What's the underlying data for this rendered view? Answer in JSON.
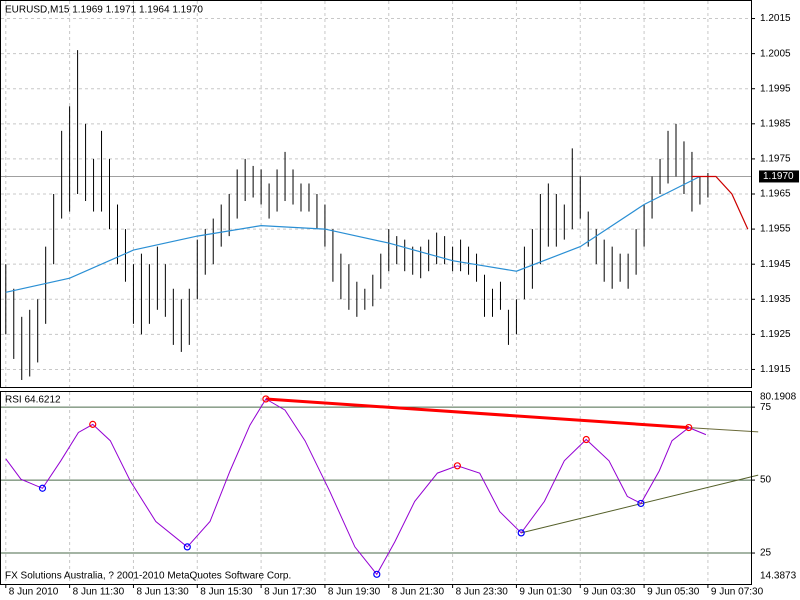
{
  "chart_data": [
    {
      "type": "ohlc",
      "title": "EURUSD,M15  1.1969 1.1971 1.1964 1.1970",
      "xlim": [
        -0.6,
        93.4
      ],
      "ylim": [
        1.191,
        1.202
      ],
      "yticks": [
        1.1915,
        1.1925,
        1.1935,
        1.1945,
        1.1955,
        1.1965,
        1.1975,
        1.1985,
        1.1995,
        1.2005,
        1.2015
      ],
      "grid": true,
      "color": "#000000",
      "high": [
        1.1945,
        1.1938,
        1.193,
        1.1932,
        1.1935,
        1.195,
        1.1965,
        1.1983,
        1.199,
        1.2006,
        1.1985,
        1.1975,
        1.1983,
        1.1975,
        1.1962,
        1.1955,
        1.1945,
        1.1948,
        1.1945,
        1.195,
        1.1945,
        1.1938,
        1.1935,
        1.1938,
        1.1952,
        1.1955,
        1.1958,
        1.1962,
        1.1965,
        1.1972,
        1.1975,
        1.1973,
        1.1972,
        1.1968,
        1.1972,
        1.1977,
        1.1972,
        1.1968,
        1.1968,
        1.1965,
        1.1962,
        1.1955,
        1.1948,
        1.1945,
        1.194,
        1.1938,
        1.1942,
        1.1948,
        1.1955,
        1.1953,
        1.1952,
        1.195,
        1.195,
        1.1952,
        1.1954,
        1.1953,
        1.195,
        1.1952,
        1.195,
        1.1948,
        1.1942,
        1.1938,
        1.194,
        1.1932,
        1.1935,
        1.195,
        1.1955,
        1.1965,
        1.1968,
        1.1965,
        1.1962,
        1.1978,
        1.197,
        1.196,
        1.1955,
        1.1952,
        1.195,
        1.1948,
        1.1948,
        1.1955,
        1.1962,
        1.197,
        1.1975,
        1.1983,
        1.1985,
        1.198,
        1.1977,
        1.197,
        1.1971
      ],
      "low": [
        1.1925,
        1.1918,
        1.1912,
        1.1913,
        1.1917,
        1.1928,
        1.1945,
        1.1958,
        1.196,
        1.1965,
        1.1963,
        1.196,
        1.196,
        1.1955,
        1.1945,
        1.194,
        1.1928,
        1.1925,
        1.1928,
        1.1932,
        1.193,
        1.1922,
        1.192,
        1.1922,
        1.1935,
        1.1942,
        1.1945,
        1.195,
        1.1953,
        1.1958,
        1.1963,
        1.1964,
        1.1962,
        1.1958,
        1.196,
        1.1963,
        1.1962,
        1.196,
        1.196,
        1.1955,
        1.195,
        1.194,
        1.1935,
        1.1932,
        1.193,
        1.1932,
        1.1933,
        1.1938,
        1.1943,
        1.1945,
        1.1943,
        1.1942,
        1.1941,
        1.1943,
        1.1945,
        1.1945,
        1.1943,
        1.1943,
        1.1942,
        1.194,
        1.193,
        1.193,
        1.1932,
        1.1922,
        1.1925,
        1.1935,
        1.1938,
        1.1945,
        1.195,
        1.195,
        1.1952,
        1.1955,
        1.1958,
        1.195,
        1.1945,
        1.194,
        1.1938,
        1.194,
        1.1938,
        1.1942,
        1.195,
        1.1958,
        1.1965,
        1.1968,
        1.197,
        1.1965,
        1.196,
        1.1962,
        1.1964
      ],
      "last_price": {
        "value": 1.197,
        "label": "1.1970"
      },
      "lines": [
        {
          "color": "#2a8fd4",
          "x": [
            0,
            8,
            16,
            24,
            32,
            40,
            48,
            56,
            64,
            72,
            80,
            87
          ],
          "values": [
            1.1937,
            1.1941,
            1.1949,
            1.1953,
            1.1956,
            1.1955,
            1.1951,
            1.1946,
            1.1943,
            1.195,
            1.1962,
            1.197
          ]
        },
        {
          "color": "#cc0000",
          "x": [
            86,
            89,
            91,
            93
          ],
          "values": [
            1.197,
            1.197,
            1.1965,
            1.1955
          ]
        }
      ]
    },
    {
      "type": "line",
      "title": "RSI 64.6212",
      "xlim": [
        -0.6,
        93.4
      ],
      "ylim": [
        14.3873,
        80.1908
      ],
      "yticks": [
        25,
        50,
        75
      ],
      "xticks": [
        {
          "value": 0,
          "label": "8 Jun 2010"
        },
        {
          "value": 8,
          "label": "8 Jun 11:30"
        },
        {
          "value": 16,
          "label": "8 Jun 13:30"
        },
        {
          "value": 24,
          "label": "8 Jun 15:30"
        },
        {
          "value": 32,
          "label": "8 Jun 17:30"
        },
        {
          "value": 40,
          "label": "8 Jun 19:30"
        },
        {
          "value": 48,
          "label": "8 Jun 21:30"
        },
        {
          "value": 56,
          "label": "8 Jun 23:30"
        },
        {
          "value": 64,
          "label": "9 Jun 01:30"
        },
        {
          "value": 72,
          "label": "9 Jun 03:30"
        },
        {
          "value": 80,
          "label": "9 Jun 05:30"
        },
        {
          "value": 88,
          "label": "9 Jun 07:30"
        }
      ],
      "grid": true,
      "color": "#9400d3",
      "x": [
        0,
        1.9,
        4.6,
        6.9,
        9.1,
        10.9,
        13.1,
        15.6,
        18.8,
        22.75,
        25.6,
        28.1,
        30.6,
        32.6,
        35,
        37.5,
        40.6,
        43.75,
        46.5,
        48.75,
        51.25,
        54.1,
        56.6,
        59.4,
        61.9,
        64.6,
        67.5,
        70,
        72.75,
        75.6,
        77.9,
        79.6,
        81.9,
        83.5,
        85.6,
        87.75
      ],
      "values": [
        57.3,
        50.3,
        47.2,
        56.6,
        66.3,
        69.1,
        63.5,
        49.7,
        35.8,
        27.1,
        35.8,
        53.1,
        68.8,
        77.8,
        74,
        63.5,
        46.2,
        27.1,
        17.7,
        28.8,
        42.7,
        52.4,
        54.9,
        52.4,
        39.2,
        31.9,
        42.7,
        56.6,
        63.9,
        56.6,
        44.4,
        42,
        53.1,
        63.5,
        68,
        65.6
      ],
      "peaks": {
        "color": "#ff0000",
        "x": [
          10.9,
          32.6,
          56.6,
          72.75,
          85.6
        ],
        "values": [
          69.1,
          77.8,
          54.9,
          63.9,
          68
        ]
      },
      "troughs": {
        "color": "#0000ff",
        "x": [
          4.6,
          22.75,
          46.5,
          64.6,
          79.6
        ],
        "values": [
          47.2,
          27.1,
          17.7,
          31.9,
          42
        ]
      },
      "trendlines": [
        {
          "color": "#ff0000",
          "width": 3,
          "x": [
            32.6,
            85.6
          ],
          "values": [
            77.8,
            68
          ]
        },
        {
          "color": "#6b6b3a",
          "width": 1,
          "x": [
            85.6,
            94.3
          ],
          "values": [
            68,
            66.5
          ]
        },
        {
          "color": "#55602a",
          "width": 1,
          "x": [
            64.6,
            94.3
          ],
          "values": [
            31.9,
            51.7
          ]
        }
      ],
      "footer": "FX Solutions Australia, ? 2001-2010 MetaQuotes Software Corp."
    }
  ]
}
